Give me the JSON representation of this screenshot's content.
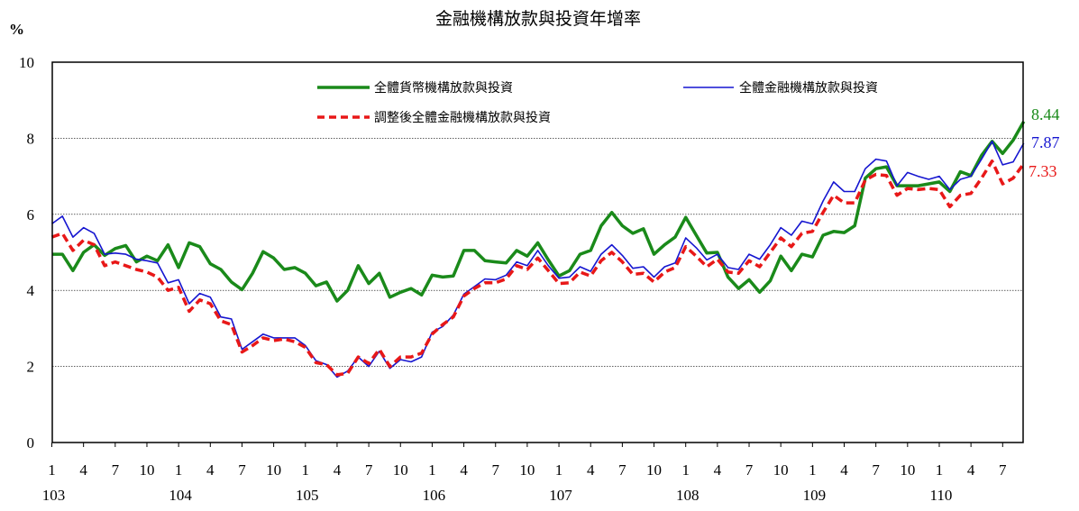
{
  "chart_data": {
    "type": "line",
    "title": "金融機構放款與投資年增率",
    "ylabel": "%",
    "ylim": [
      0,
      10
    ],
    "yticks": [
      0,
      2,
      4,
      6,
      8,
      10
    ],
    "grid": true,
    "legend_position": "top-center (inside plot)",
    "x_month_ticks": [
      "1",
      "4",
      "7",
      "10",
      "1",
      "4",
      "7",
      "10",
      "1",
      "4",
      "7",
      "10",
      "1",
      "4",
      "7",
      "10",
      "1",
      "4",
      "7",
      "10",
      "1",
      "4",
      "7",
      "10",
      "1",
      "4",
      "7",
      "10",
      "1",
      "4",
      "7"
    ],
    "x_year_labels": [
      "103",
      "104",
      "105",
      "106",
      "107",
      "108",
      "109",
      "110"
    ],
    "x_start": "103/1",
    "x_end": "110/8",
    "series": [
      {
        "name": "全體貨幣機構放款與投資",
        "color": "#1a8a1a",
        "style": "solid-thick",
        "end_label": "8.44",
        "values": [
          4.95,
          4.95,
          4.52,
          5.0,
          5.2,
          4.92,
          5.1,
          5.18,
          4.75,
          4.9,
          4.78,
          5.2,
          4.6,
          5.25,
          5.15,
          4.7,
          4.55,
          4.22,
          4.02,
          4.45,
          5.02,
          4.85,
          4.55,
          4.6,
          4.45,
          4.12,
          4.22,
          3.72,
          4.0,
          4.65,
          4.18,
          4.45,
          3.82,
          3.95,
          4.05,
          3.88,
          4.4,
          4.35,
          4.38,
          5.05,
          5.05,
          4.78,
          4.75,
          4.72,
          5.05,
          4.9,
          5.25,
          4.8,
          4.38,
          4.52,
          4.95,
          5.05,
          5.7,
          6.05,
          5.7,
          5.5,
          5.62,
          4.95,
          5.2,
          5.4,
          5.92,
          5.45,
          4.98,
          5.0,
          4.35,
          4.05,
          4.28,
          3.95,
          4.25,
          4.9,
          4.52,
          4.95,
          4.88,
          5.45,
          5.55,
          5.52,
          5.7,
          6.95,
          7.2,
          7.25,
          6.75,
          6.75,
          6.75,
          6.8,
          6.85,
          6.6,
          7.12,
          7.02,
          7.55,
          7.92,
          7.6,
          7.95,
          8.44
        ]
      },
      {
        "name": "全體金融機構放款與投資",
        "color": "#1515d0",
        "style": "solid-thin",
        "end_label": "7.87",
        "values": [
          5.75,
          5.95,
          5.4,
          5.65,
          5.5,
          4.95,
          4.98,
          4.95,
          4.82,
          4.78,
          4.72,
          4.2,
          4.28,
          3.65,
          3.92,
          3.82,
          3.3,
          3.25,
          2.45,
          2.65,
          2.85,
          2.75,
          2.75,
          2.75,
          2.55,
          2.15,
          2.05,
          1.72,
          1.88,
          2.25,
          2.0,
          2.4,
          1.95,
          2.18,
          2.12,
          2.25,
          2.9,
          3.05,
          3.35,
          3.9,
          4.1,
          4.3,
          4.28,
          4.4,
          4.75,
          4.65,
          5.05,
          4.65,
          4.32,
          4.35,
          4.62,
          4.5,
          4.95,
          5.2,
          4.92,
          4.58,
          4.62,
          4.35,
          4.62,
          4.72,
          5.38,
          5.12,
          4.8,
          4.95,
          4.6,
          4.55,
          4.95,
          4.82,
          5.2,
          5.65,
          5.45,
          5.82,
          5.75,
          6.35,
          6.85,
          6.6,
          6.6,
          7.2,
          7.45,
          7.4,
          6.75,
          7.1,
          7.0,
          6.92,
          7.0,
          6.65,
          6.92,
          7.0,
          7.45,
          7.92,
          7.3,
          7.38,
          7.87
        ]
      },
      {
        "name": "調整後全體金融機構放款與投資",
        "color": "#e81818",
        "style": "dashed-thick",
        "end_label": "7.33",
        "values": [
          5.4,
          5.5,
          5.05,
          5.32,
          5.2,
          4.65,
          4.75,
          4.65,
          4.55,
          4.48,
          4.35,
          4.0,
          4.08,
          3.45,
          3.75,
          3.65,
          3.2,
          3.1,
          2.38,
          2.55,
          2.75,
          2.68,
          2.72,
          2.65,
          2.5,
          2.1,
          2.05,
          1.78,
          1.82,
          2.25,
          2.08,
          2.45,
          2.0,
          2.25,
          2.25,
          2.35,
          2.85,
          3.1,
          3.3,
          3.85,
          4.05,
          4.2,
          4.2,
          4.3,
          4.65,
          4.55,
          4.85,
          4.52,
          4.18,
          4.2,
          4.48,
          4.38,
          4.78,
          5.0,
          4.75,
          4.42,
          4.45,
          4.22,
          4.48,
          4.6,
          5.15,
          4.9,
          4.62,
          4.82,
          4.48,
          4.45,
          4.78,
          4.62,
          5.0,
          5.38,
          5.15,
          5.5,
          5.55,
          6.05,
          6.5,
          6.3,
          6.3,
          6.9,
          7.05,
          7.02,
          6.5,
          6.68,
          6.65,
          6.68,
          6.65,
          6.2,
          6.5,
          6.55,
          6.95,
          7.4,
          6.8,
          6.95,
          7.33
        ]
      }
    ]
  }
}
